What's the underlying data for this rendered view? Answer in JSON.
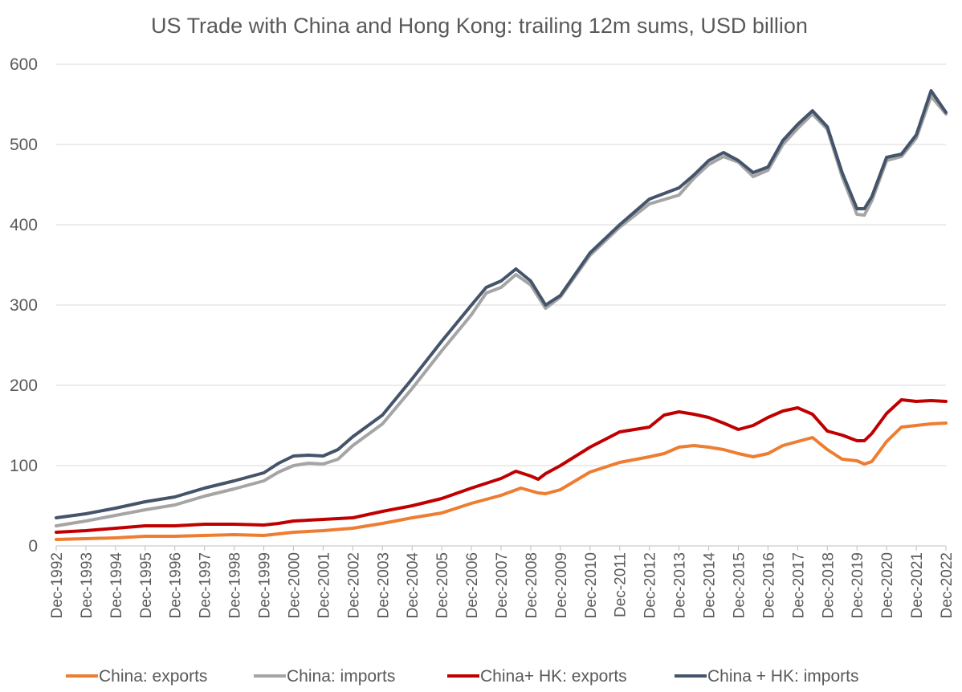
{
  "chart_data": {
    "type": "line",
    "title": "US Trade with China and Hong Kong: trailing 12m sums, USD billion",
    "ylim": [
      0,
      600
    ],
    "yticks": [
      "0",
      "100",
      "200",
      "300",
      "400",
      "500",
      "600"
    ],
    "grid": true,
    "legend_position": "bottom",
    "x": [
      "Dec-1992",
      "Dec-1993",
      "Dec-1994",
      "Dec-1995",
      "Dec-1996",
      "Dec-1997",
      "Dec-1998",
      "Dec-1999",
      "Dec-2000",
      "Dec-2001",
      "Dec-2002",
      "Dec-2003",
      "Dec-2004",
      "Dec-2005",
      "Dec-2006",
      "Dec-2007",
      "Dec-2008",
      "Dec-2009",
      "Dec-2010",
      "Dec-2011",
      "Dec-2012",
      "Dec-2013",
      "Dec-2014",
      "Dec-2015",
      "Dec-2016",
      "Dec-2017",
      "Dec-2018",
      "Dec-2019",
      "Dec-2020",
      "Dec-2021",
      "Dec-2022"
    ],
    "series": [
      {
        "name": "China: exports",
        "color": "#ed7d31",
        "points": [
          [
            "1992-12",
            8
          ],
          [
            "1993-12",
            9
          ],
          [
            "1994-12",
            10
          ],
          [
            "1995-12",
            12
          ],
          [
            "1996-12",
            12
          ],
          [
            "1997-12",
            13
          ],
          [
            "1998-12",
            14
          ],
          [
            "1999-12",
            13
          ],
          [
            "2000-06",
            15
          ],
          [
            "2000-12",
            17
          ],
          [
            "2001-12",
            19
          ],
          [
            "2002-12",
            22
          ],
          [
            "2003-12",
            28
          ],
          [
            "2004-12",
            35
          ],
          [
            "2005-12",
            41
          ],
          [
            "2006-12",
            53
          ],
          [
            "2007-12",
            63
          ],
          [
            "2008-08",
            72
          ],
          [
            "2009-03",
            66
          ],
          [
            "2009-06",
            65
          ],
          [
            "2009-12",
            70
          ],
          [
            "2010-12",
            92
          ],
          [
            "2011-12",
            104
          ],
          [
            "2012-12",
            111
          ],
          [
            "2013-06",
            115
          ],
          [
            "2013-12",
            123
          ],
          [
            "2014-06",
            125
          ],
          [
            "2014-12",
            123
          ],
          [
            "2015-06",
            120
          ],
          [
            "2015-12",
            115
          ],
          [
            "2016-06",
            111
          ],
          [
            "2016-12",
            115
          ],
          [
            "2017-06",
            125
          ],
          [
            "2017-12",
            130
          ],
          [
            "2018-06",
            135
          ],
          [
            "2018-12",
            120
          ],
          [
            "2019-06",
            108
          ],
          [
            "2019-12",
            106
          ],
          [
            "2020-03",
            102
          ],
          [
            "2020-06",
            105
          ],
          [
            "2020-12",
            130
          ],
          [
            "2021-06",
            148
          ],
          [
            "2021-12",
            150
          ],
          [
            "2022-06",
            152
          ],
          [
            "2022-12",
            153
          ]
        ]
      },
      {
        "name": "China: imports",
        "color": "#a5a5a5",
        "points": [
          [
            "1992-12",
            25
          ],
          [
            "1993-12",
            31
          ],
          [
            "1994-12",
            38
          ],
          [
            "1995-12",
            45
          ],
          [
            "1996-12",
            51
          ],
          [
            "1997-12",
            62
          ],
          [
            "1998-12",
            71
          ],
          [
            "1999-12",
            81
          ],
          [
            "2000-06",
            92
          ],
          [
            "2000-12",
            100
          ],
          [
            "2001-06",
            103
          ],
          [
            "2001-12",
            102
          ],
          [
            "2002-06",
            108
          ],
          [
            "2002-12",
            125
          ],
          [
            "2003-12",
            152
          ],
          [
            "2004-12",
            196
          ],
          [
            "2005-12",
            243
          ],
          [
            "2006-12",
            288
          ],
          [
            "2007-06",
            315
          ],
          [
            "2007-12",
            322
          ],
          [
            "2008-06",
            338
          ],
          [
            "2008-12",
            325
          ],
          [
            "2009-06",
            296
          ],
          [
            "2009-12",
            310
          ],
          [
            "2010-12",
            362
          ],
          [
            "2011-12",
            397
          ],
          [
            "2012-12",
            426
          ],
          [
            "2013-12",
            437
          ],
          [
            "2014-06",
            458
          ],
          [
            "2014-12",
            475
          ],
          [
            "2015-06",
            485
          ],
          [
            "2015-12",
            478
          ],
          [
            "2016-06",
            460
          ],
          [
            "2016-12",
            468
          ],
          [
            "2017-06",
            500
          ],
          [
            "2017-12",
            520
          ],
          [
            "2018-06",
            538
          ],
          [
            "2018-12",
            519
          ],
          [
            "2019-06",
            460
          ],
          [
            "2019-12",
            413
          ],
          [
            "2020-03",
            412
          ],
          [
            "2020-06",
            430
          ],
          [
            "2020-12",
            480
          ],
          [
            "2021-06",
            485
          ],
          [
            "2021-12",
            508
          ],
          [
            "2022-06",
            560
          ],
          [
            "2022-12",
            538
          ]
        ]
      },
      {
        "name": "China+ HK: exports",
        "color": "#c00000",
        "points": [
          [
            "1992-12",
            17
          ],
          [
            "1993-12",
            19
          ],
          [
            "1994-12",
            22
          ],
          [
            "1995-12",
            25
          ],
          [
            "1996-12",
            25
          ],
          [
            "1997-12",
            27
          ],
          [
            "1998-12",
            27
          ],
          [
            "1999-12",
            26
          ],
          [
            "2000-06",
            28
          ],
          [
            "2000-12",
            31
          ],
          [
            "2001-12",
            33
          ],
          [
            "2002-12",
            35
          ],
          [
            "2003-12",
            43
          ],
          [
            "2004-12",
            50
          ],
          [
            "2005-12",
            59
          ],
          [
            "2006-12",
            72
          ],
          [
            "2007-12",
            84
          ],
          [
            "2008-06",
            93
          ],
          [
            "2008-12",
            87
          ],
          [
            "2009-03",
            83
          ],
          [
            "2009-06",
            90
          ],
          [
            "2009-12",
            100
          ],
          [
            "2010-12",
            123
          ],
          [
            "2011-12",
            142
          ],
          [
            "2012-12",
            148
          ],
          [
            "2013-06",
            163
          ],
          [
            "2013-12",
            167
          ],
          [
            "2014-06",
            164
          ],
          [
            "2014-12",
            160
          ],
          [
            "2015-06",
            153
          ],
          [
            "2015-12",
            145
          ],
          [
            "2016-06",
            150
          ],
          [
            "2016-12",
            160
          ],
          [
            "2017-06",
            168
          ],
          [
            "2017-12",
            172
          ],
          [
            "2018-06",
            164
          ],
          [
            "2018-12",
            143
          ],
          [
            "2019-06",
            138
          ],
          [
            "2019-12",
            131
          ],
          [
            "2020-03",
            131
          ],
          [
            "2020-06",
            140
          ],
          [
            "2020-12",
            165
          ],
          [
            "2021-06",
            182
          ],
          [
            "2021-12",
            180
          ],
          [
            "2022-06",
            181
          ],
          [
            "2022-12",
            180
          ]
        ]
      },
      {
        "name": "China + HK: imports",
        "color": "#44546a",
        "points": [
          [
            "1992-12",
            35
          ],
          [
            "1993-12",
            40
          ],
          [
            "1994-12",
            47
          ],
          [
            "1995-12",
            55
          ],
          [
            "1996-12",
            61
          ],
          [
            "1997-12",
            72
          ],
          [
            "1998-12",
            81
          ],
          [
            "1999-12",
            91
          ],
          [
            "2000-06",
            103
          ],
          [
            "2000-12",
            112
          ],
          [
            "2001-06",
            113
          ],
          [
            "2001-12",
            112
          ],
          [
            "2002-06",
            120
          ],
          [
            "2002-12",
            136
          ],
          [
            "2003-12",
            163
          ],
          [
            "2004-12",
            208
          ],
          [
            "2005-12",
            255
          ],
          [
            "2006-12",
            300
          ],
          [
            "2007-06",
            322
          ],
          [
            "2007-12",
            330
          ],
          [
            "2008-06",
            345
          ],
          [
            "2008-12",
            330
          ],
          [
            "2009-06",
            300
          ],
          [
            "2009-12",
            312
          ],
          [
            "2010-12",
            365
          ],
          [
            "2011-12",
            400
          ],
          [
            "2012-12",
            432
          ],
          [
            "2013-12",
            446
          ],
          [
            "2014-06",
            462
          ],
          [
            "2014-12",
            480
          ],
          [
            "2015-06",
            490
          ],
          [
            "2015-12",
            480
          ],
          [
            "2016-06",
            465
          ],
          [
            "2016-12",
            472
          ],
          [
            "2017-06",
            505
          ],
          [
            "2017-12",
            525
          ],
          [
            "2018-06",
            542
          ],
          [
            "2018-12",
            522
          ],
          [
            "2019-06",
            465
          ],
          [
            "2019-12",
            420
          ],
          [
            "2020-03",
            420
          ],
          [
            "2020-06",
            435
          ],
          [
            "2020-12",
            484
          ],
          [
            "2021-06",
            488
          ],
          [
            "2021-12",
            512
          ],
          [
            "2022-06",
            567
          ],
          [
            "2022-12",
            540
          ]
        ]
      }
    ]
  }
}
